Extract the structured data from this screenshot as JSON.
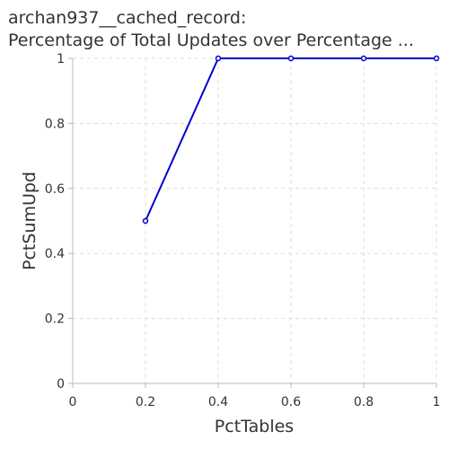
{
  "chart_data": {
    "type": "line",
    "title_lines": [
      "archan937__cached_record:",
      "Percentage of Total Updates over Percentage ..."
    ],
    "xlabel": "PctTables",
    "ylabel": "PctSumUpd",
    "xlim": [
      0,
      1
    ],
    "ylim": [
      0,
      1
    ],
    "x_ticks": [
      0,
      0.2,
      0.4,
      0.6,
      0.8,
      1
    ],
    "x_tick_labels": [
      "0",
      "0.2",
      "0.4",
      "0.6",
      "0.8",
      "1"
    ],
    "y_ticks": [
      0,
      0.2,
      0.4,
      0.6,
      0.8,
      1
    ],
    "y_tick_labels": [
      "0",
      "0.2",
      "0.4",
      "0.6",
      "0.8",
      "1"
    ],
    "grid": true,
    "series": [
      {
        "x": [
          0.2,
          0.4,
          0.6,
          0.8,
          1.0
        ],
        "y": [
          0.5,
          1.0,
          1.0,
          1.0,
          1.0
        ],
        "color": "#0000cc",
        "marker": "circle"
      }
    ]
  }
}
